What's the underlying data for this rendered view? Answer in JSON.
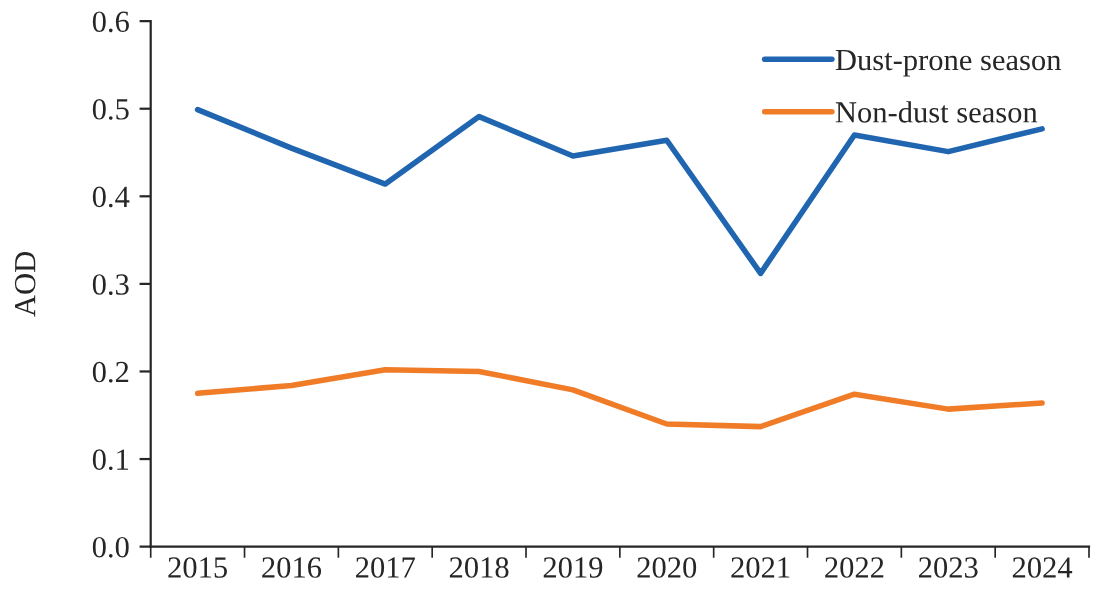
{
  "chart_data": {
    "type": "line",
    "ylabel": "AOD",
    "categories": [
      "2015",
      "2016",
      "2017",
      "2018",
      "2019",
      "2020",
      "2021",
      "2022",
      "2023",
      "2024"
    ],
    "series": [
      {
        "name": "Dust-prone season",
        "color": "#1f65b0",
        "values": [
          0.499,
          0.455,
          0.414,
          0.491,
          0.446,
          0.464,
          0.312,
          0.47,
          0.451,
          0.477
        ]
      },
      {
        "name": "Non-dust season",
        "color": "#f07c28",
        "values": [
          0.175,
          0.184,
          0.202,
          0.2,
          0.179,
          0.14,
          0.137,
          0.174,
          0.157,
          0.164
        ]
      }
    ],
    "ylim": [
      0,
      0.6
    ],
    "yticks": [
      {
        "value": 0,
        "label": "0.0"
      },
      {
        "value": 0.1,
        "label": "0.1"
      },
      {
        "value": 0.2,
        "label": "0.2"
      },
      {
        "value": 0.3,
        "label": "0.3"
      },
      {
        "value": 0.4,
        "label": "0.4"
      },
      {
        "value": 0.5,
        "label": "0.5"
      },
      {
        "value": 0.6,
        "label": "0.6"
      }
    ],
    "grid": false,
    "legend": "top right",
    "marker": "none",
    "line_style": "solid"
  }
}
